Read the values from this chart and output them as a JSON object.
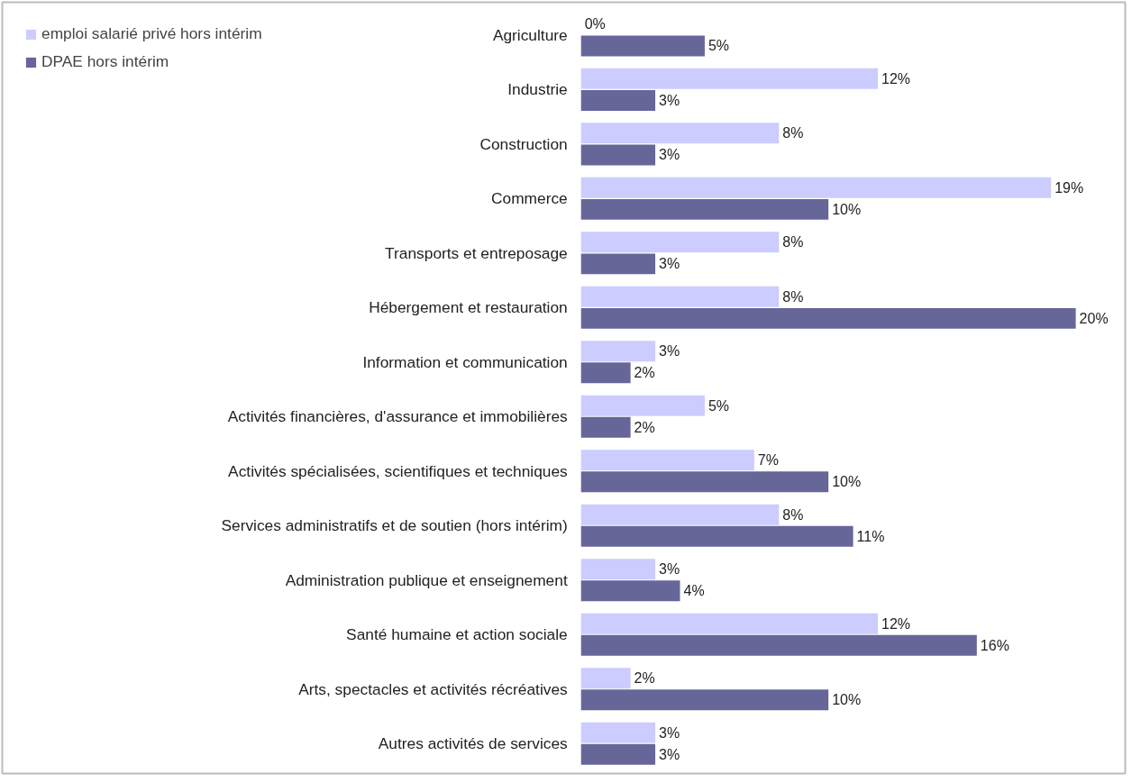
{
  "chart_data": {
    "type": "bar",
    "orientation": "horizontal",
    "categories": [
      "Agriculture",
      "Industrie",
      "Construction",
      "Commerce",
      "Transports et entreposage",
      "Hébergement et restauration",
      "Information et communication",
      "Activités financières, d'assurance et immobilières",
      "Activités spécialisées, scientifiques et techniques",
      "Services administratifs et de soutien (hors intérim)",
      "Administration publique et enseignement",
      "Santé humaine et action sociale",
      "Arts, spectacles et activités récréatives",
      "Autres activités de services"
    ],
    "series": [
      {
        "name": "emploi salarié privé hors intérim",
        "color": "#ccccff",
        "values": [
          0,
          12,
          8,
          19,
          8,
          8,
          3,
          5,
          7,
          8,
          3,
          12,
          2,
          3
        ],
        "value_labels": [
          "0%",
          "12%",
          "8%",
          "19%",
          "8%",
          "8%",
          "3%",
          "5%",
          "7%",
          "8%",
          "3%",
          "12%",
          "2%",
          "3%"
        ]
      },
      {
        "name": "DPAE hors intérim",
        "color": "#666699",
        "values": [
          5,
          3,
          3,
          10,
          3,
          20,
          2,
          2,
          10,
          11,
          4,
          16,
          10,
          3
        ],
        "value_labels": [
          "5%",
          "3%",
          "3%",
          "10%",
          "3%",
          "20%",
          "2%",
          "2%",
          "10%",
          "11%",
          "4%",
          "16%",
          "10%",
          "3%"
        ]
      }
    ],
    "legend": "top left",
    "grid": false
  }
}
